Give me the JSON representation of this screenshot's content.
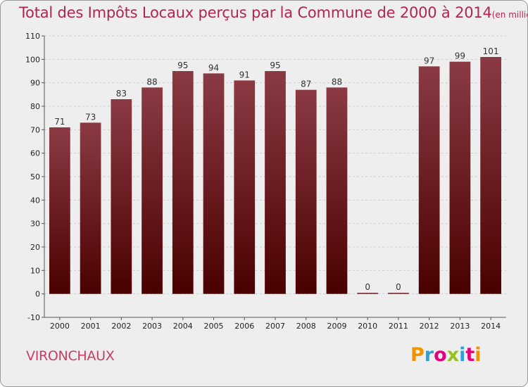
{
  "title": "Total des Impôts Locaux perçus par la Commune de 2000 à 2014",
  "subtitle": "(en milliers d'€)",
  "commune": "VIRONCHAUX",
  "brand": "Proxiti",
  "colors": {
    "title": "#b0264e",
    "bar_top": "#8b3a44",
    "bar_bottom": "#4a0000",
    "background": "#eeeeee",
    "grid": "#cccccc"
  },
  "chart_data": {
    "type": "bar",
    "categories": [
      "2000",
      "2001",
      "2002",
      "2003",
      "2004",
      "2005",
      "2006",
      "2007",
      "2008",
      "2009",
      "2010",
      "2011",
      "2012",
      "2013",
      "2014"
    ],
    "values": [
      71,
      73,
      83,
      88,
      95,
      94,
      91,
      95,
      87,
      88,
      0,
      0,
      97,
      99,
      101
    ],
    "ylim": [
      -10,
      110
    ],
    "yticks": [
      -10,
      0,
      10,
      20,
      30,
      40,
      50,
      60,
      70,
      80,
      90,
      100,
      110
    ],
    "grid": "horizontal dashed",
    "xlabel": "",
    "ylabel": ""
  }
}
